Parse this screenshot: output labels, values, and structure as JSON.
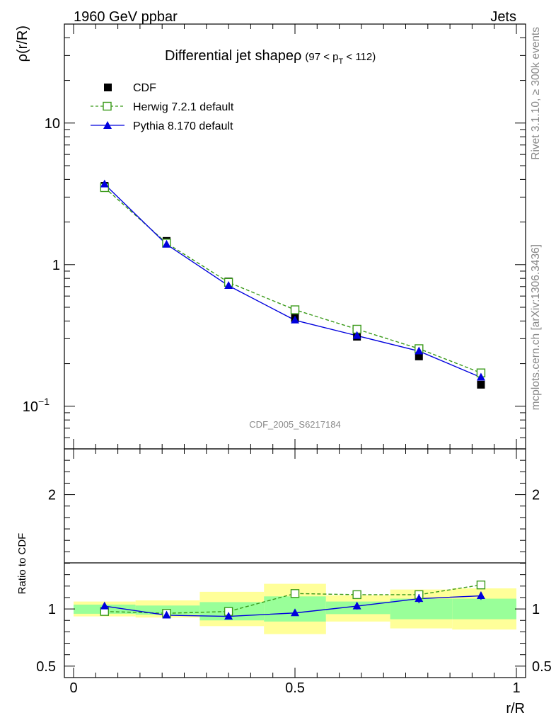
{
  "header": {
    "left": "1960 GeV ppbar",
    "right": "Jets"
  },
  "side_texts": {
    "rivet": "Rivet 3.1.10, ≥ 300k events",
    "mcplots": "mcplots.cern.ch [arXiv:1306.3436]"
  },
  "chart_data": [
    {
      "type": "line",
      "title": "Differential jet shape",
      "title_rho": "ρ",
      "title_range": {
        "prefix": "(97 < p",
        "sub": "T",
        "suffix": " < 112)"
      },
      "analysis_label": "CDF_2005_S6217184",
      "ylabel": "ρ(r/R)",
      "xlabel": "",
      "yscale": "log",
      "ylim": [
        0.05,
        50
      ],
      "xlim": [
        0,
        1
      ],
      "yticks": [
        {
          "value": 10,
          "label": "10"
        },
        {
          "value": 1,
          "label": "1"
        },
        {
          "value": 0.1,
          "label": "10",
          "sup": "−1"
        }
      ],
      "legend_position": "top-left",
      "legend": [
        {
          "label": "CDF"
        },
        {
          "label": "Herwig 7.2.1 default"
        },
        {
          "label": "Pythia 8.170 default"
        }
      ],
      "series": [
        {
          "name": "CDF",
          "color": "#000000",
          "style": "markers",
          "marker": "filled-square",
          "x": [
            0.07,
            0.21,
            0.35,
            0.5,
            0.64,
            0.78,
            0.92
          ],
          "y": [
            3.6,
            1.47,
            0.76,
            0.42,
            0.31,
            0.225,
            0.142
          ]
        },
        {
          "name": "Herwig 7.2.1 default",
          "color": "#3a9a1a",
          "style": "dashed",
          "marker": "open-square",
          "x": [
            0.07,
            0.21,
            0.35,
            0.5,
            0.64,
            0.78,
            0.92
          ],
          "y": [
            3.5,
            1.42,
            0.75,
            0.48,
            0.35,
            0.255,
            0.172
          ]
        },
        {
          "name": "Pythia 8.170 default",
          "color": "#0000dd",
          "style": "solid",
          "marker": "filled-triangle",
          "x": [
            0.07,
            0.21,
            0.35,
            0.5,
            0.64,
            0.78,
            0.92
          ],
          "y": [
            3.7,
            1.39,
            0.71,
            0.405,
            0.315,
            0.245,
            0.16
          ]
        }
      ]
    },
    {
      "type": "line",
      "ylabel": "Ratio to CDF",
      "xlabel": "r/R",
      "ylim": [
        0.4,
        2.4
      ],
      "xlim": [
        0,
        1
      ],
      "yticks": [
        {
          "value": 2,
          "label": "2"
        },
        {
          "value": 1,
          "label": "1"
        },
        {
          "value": 0.5,
          "label": "0.5"
        }
      ],
      "xticks": [
        {
          "value": 0,
          "label": "0"
        },
        {
          "value": 0.5,
          "label": "0.5"
        },
        {
          "value": 1,
          "label": "1"
        }
      ],
      "bands": [
        {
          "x0": 0.0,
          "x1": 0.14,
          "yellow": [
            0.935,
            1.065
          ],
          "green": [
            0.958,
            1.038
          ]
        },
        {
          "x0": 0.14,
          "x1": 0.285,
          "yellow": [
            0.925,
            1.075
          ],
          "green": [
            0.95,
            1.03
          ]
        },
        {
          "x0": 0.285,
          "x1": 0.43,
          "yellow": [
            0.85,
            1.15
          ],
          "green": [
            0.9,
            1.06
          ]
        },
        {
          "x0": 0.43,
          "x1": 0.57,
          "yellow": [
            0.78,
            1.22
          ],
          "green": [
            0.89,
            1.11
          ]
        },
        {
          "x0": 0.57,
          "x1": 0.715,
          "yellow": [
            0.89,
            1.12
          ],
          "green": [
            0.955,
            1.065
          ]
        },
        {
          "x0": 0.715,
          "x1": 0.855,
          "yellow": [
            0.83,
            1.17
          ],
          "green": [
            0.91,
            1.09
          ]
        },
        {
          "x0": 0.855,
          "x1": 1.0,
          "yellow": [
            0.82,
            1.18
          ],
          "green": [
            0.91,
            1.09
          ]
        }
      ],
      "series": [
        {
          "name": "Herwig 7.2.1 default",
          "color": "#3a9a1a",
          "style": "dashed",
          "marker": "open-square",
          "x": [
            0.07,
            0.21,
            0.35,
            0.5,
            0.64,
            0.78,
            0.92
          ],
          "y": [
            0.978,
            0.962,
            0.978,
            1.135,
            1.125,
            1.125,
            1.21
          ]
        },
        {
          "name": "Pythia 8.170 default",
          "color": "#0000dd",
          "style": "solid",
          "marker": "filled-triangle",
          "x": [
            0.07,
            0.21,
            0.35,
            0.5,
            0.64,
            0.78,
            0.92
          ],
          "y": [
            1.025,
            0.945,
            0.935,
            0.965,
            1.025,
            1.09,
            1.115
          ],
          "yerr": [
            0.012,
            0.01,
            0.013,
            0.022,
            0.03,
            0.04,
            0.035
          ]
        }
      ]
    }
  ]
}
